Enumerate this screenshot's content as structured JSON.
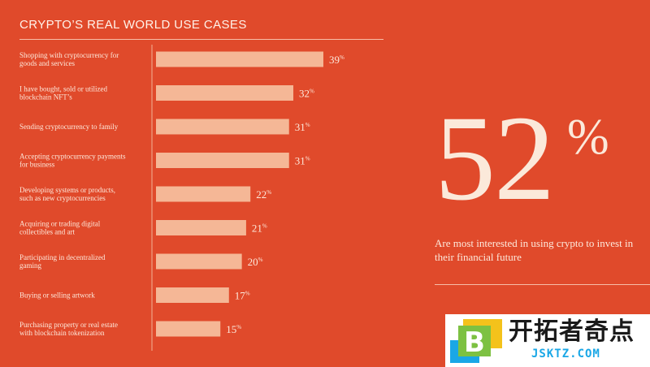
{
  "chart_data": {
    "type": "bar",
    "orientation": "horizontal",
    "title": "CRYPTO’S REAL WORLD USE CASES",
    "xlim": [
      0,
      39
    ],
    "categories": [
      [
        "Shopping with cryptocurrency for",
        "goods and services"
      ],
      [
        "I have bought, sold or utilized",
        "blockchain NFT’s"
      ],
      [
        "Sending cryptocurrency to family"
      ],
      [
        "Accepting cryptocurrency payments",
        "for business"
      ],
      [
        "Developing systems or products,",
        "such as new cryptocurrencies"
      ],
      [
        "Acquiring or trading digital",
        "collectibles and art"
      ],
      [
        "Participating in decentralized",
        "gaming"
      ],
      [
        "Buying or selling artwork"
      ],
      [
        "Purchasing property or real estate",
        "with blockchain tokenization"
      ]
    ],
    "values": [
      39,
      32,
      31,
      31,
      22,
      21,
      20,
      17,
      15
    ],
    "value_suffix": "%",
    "colors": {
      "background": "#e04a2b",
      "bar": "#f5b796",
      "text": "#fde9dc"
    }
  },
  "highlight": {
    "number": "52",
    "unit": "%",
    "caption": "Are most interested in using crypto to invest in their financial future"
  },
  "watermark": {
    "mark_letter": "B",
    "name_cn": "开拓者奇点",
    "domain": "JSKTZ.COM"
  }
}
